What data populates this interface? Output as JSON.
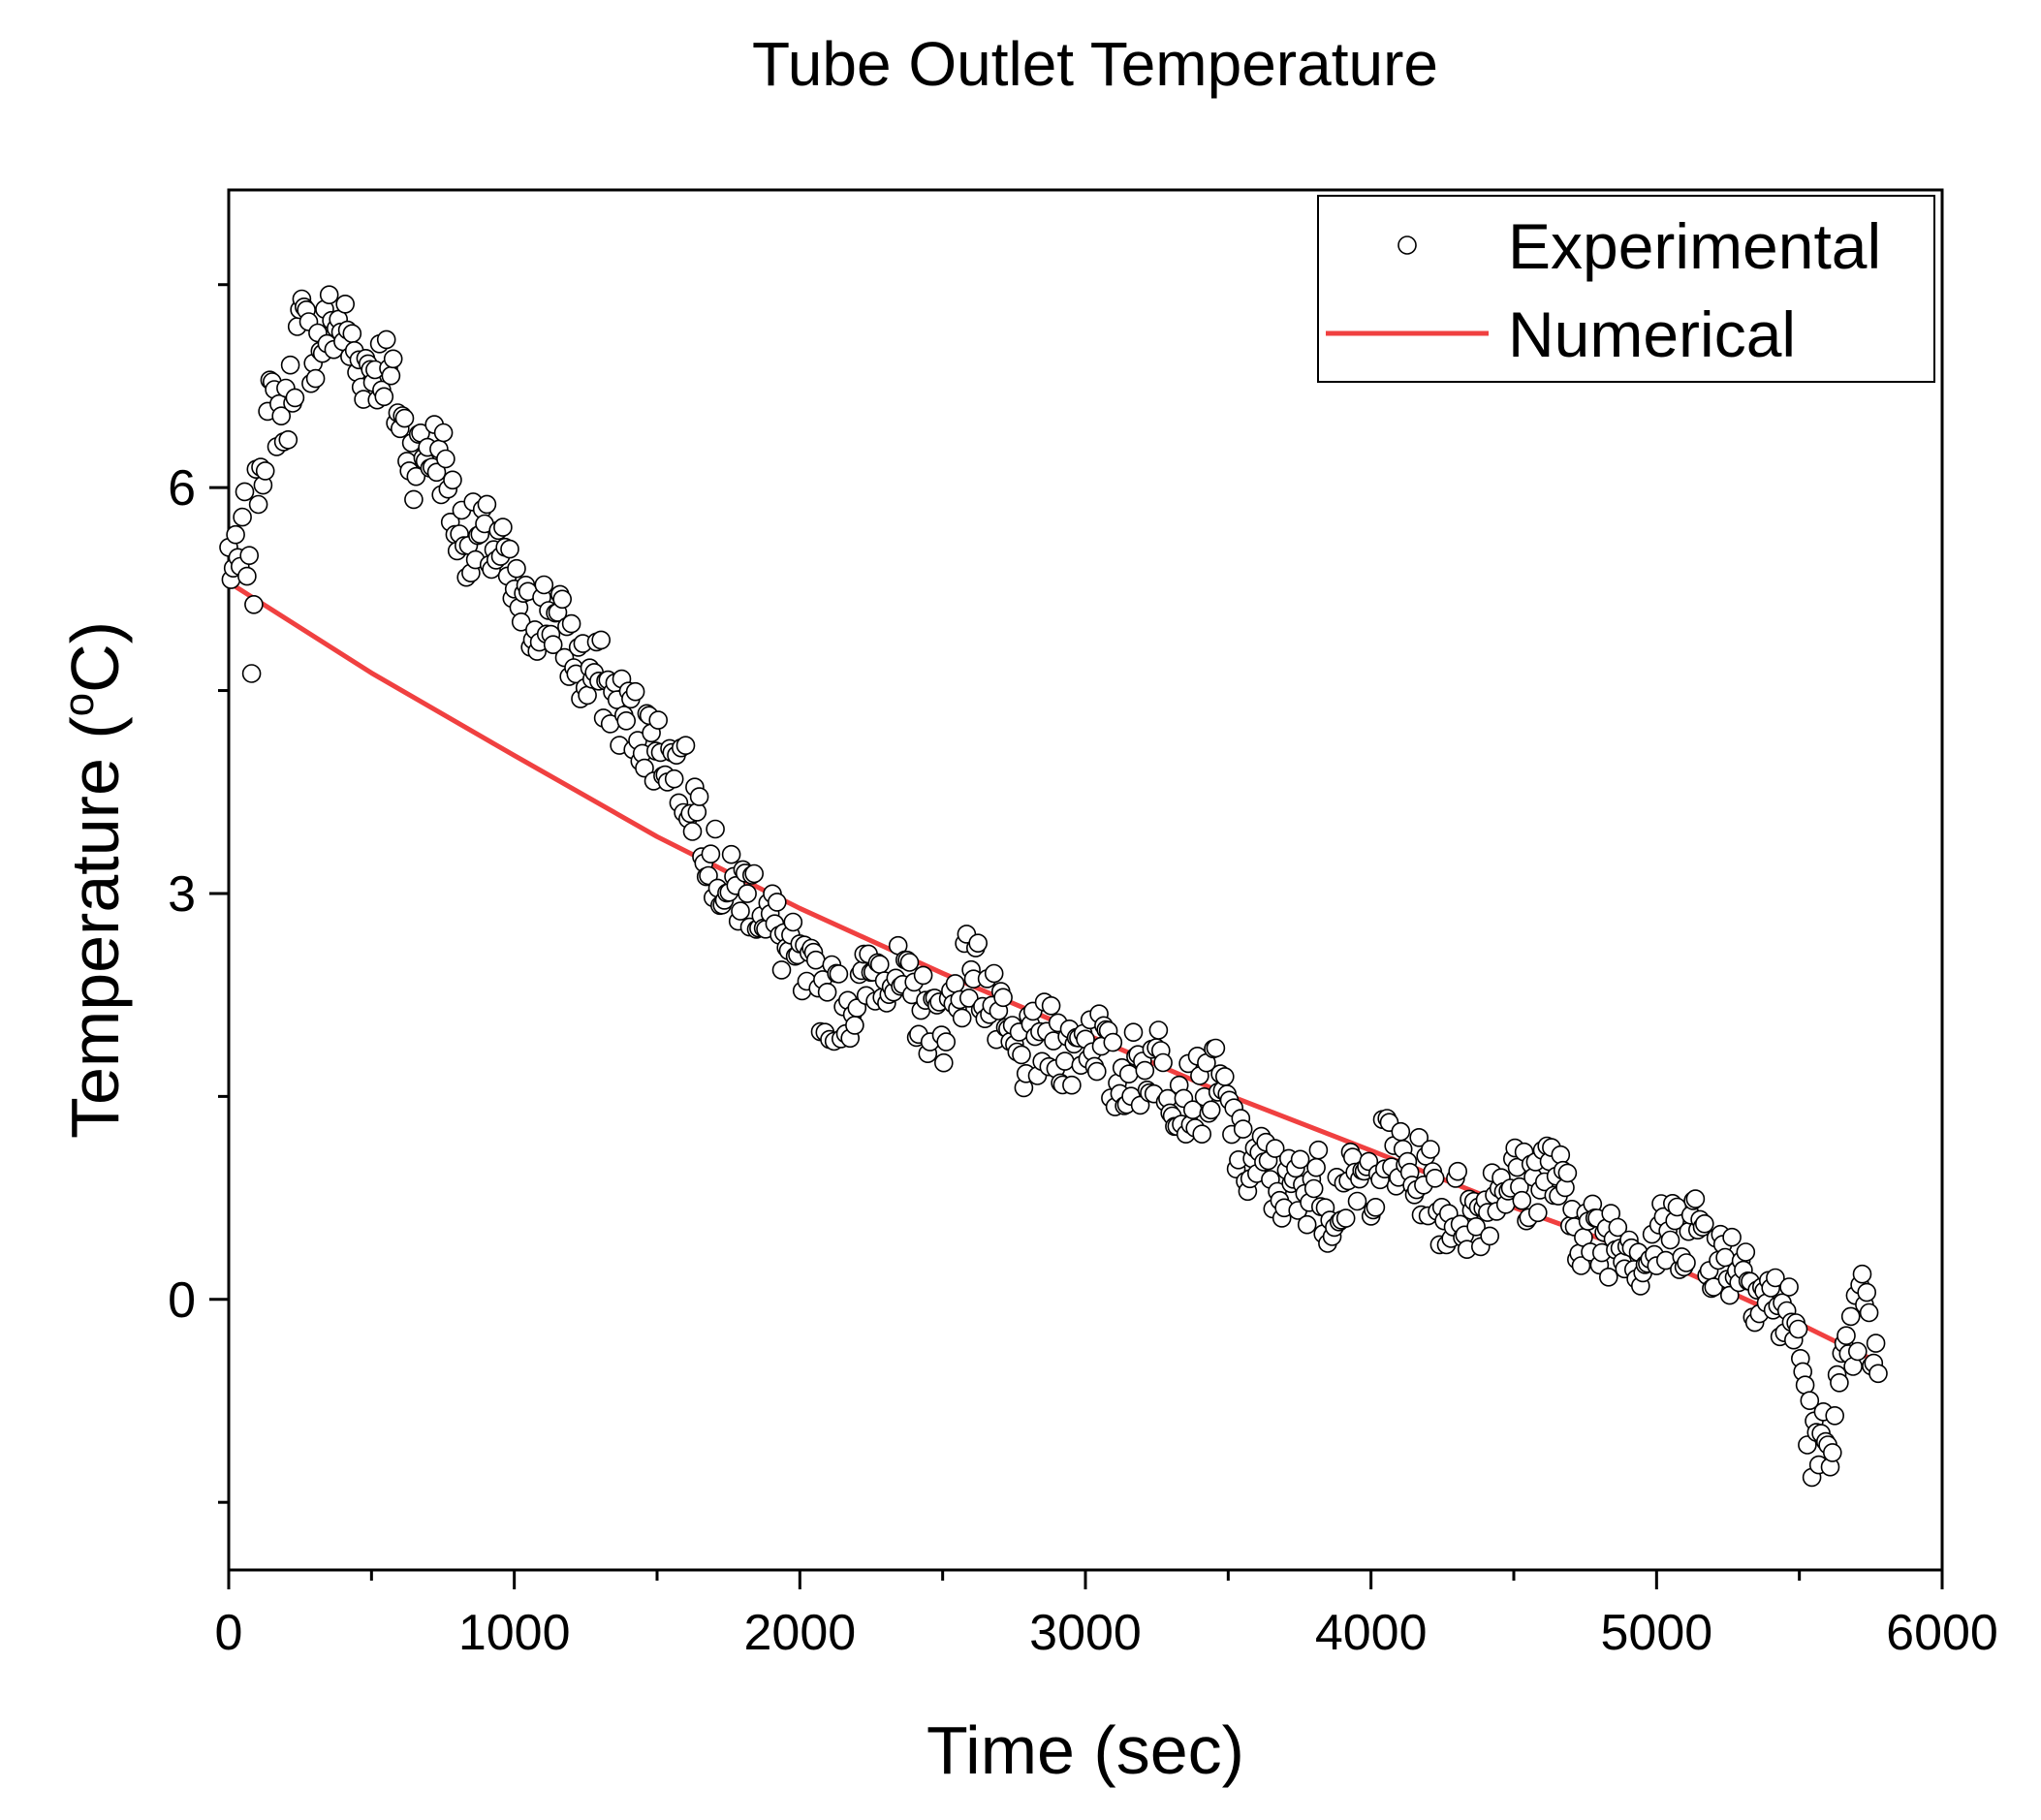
{
  "chart_data": {
    "type": "scatter",
    "title": "Tube Outlet Temperature",
    "xlabel": "Time (sec)",
    "ylabel_main": "Temperature (",
    "ylabel_sup": "o",
    "ylabel_tail": "C)",
    "xlim": [
      0,
      6000
    ],
    "ylim": [
      -2.0,
      8.2
    ],
    "grid": false,
    "legend_position": "top-right",
    "x_major_ticks": [
      0,
      1000,
      2000,
      3000,
      4000,
      5000,
      6000
    ],
    "x_tick_labels": [
      "0",
      "1000",
      "2000",
      "3000",
      "4000",
      "5000",
      "6000"
    ],
    "x_minor_ticks": [
      500,
      1500,
      2500,
      3500,
      4500,
      5500
    ],
    "y_major_ticks": [
      0,
      3,
      6
    ],
    "y_tick_labels": [
      "0",
      "3",
      "6"
    ],
    "y_minor_ticks": [
      -1.5,
      1.5,
      4.5,
      7.5
    ],
    "colors": {
      "numerical": "#f04040",
      "experimental_edge": "#000000",
      "experimental_fill": "#ffffff"
    },
    "series": [
      {
        "name": "Experimental",
        "style": "open-circle",
        "anchors": [
          [
            0,
            5.5
          ],
          [
            20,
            5.35
          ],
          [
            40,
            5.4
          ],
          [
            60,
            5.8
          ],
          [
            80,
            4.8
          ],
          [
            100,
            6.1
          ],
          [
            150,
            6.6
          ],
          [
            200,
            6.5
          ],
          [
            250,
            7.2
          ],
          [
            300,
            7.0
          ],
          [
            350,
            7.2
          ],
          [
            400,
            7.2
          ],
          [
            450,
            6.9
          ],
          [
            500,
            6.9
          ],
          [
            550,
            6.9
          ],
          [
            600,
            6.5
          ],
          [
            650,
            6.2
          ],
          [
            700,
            6.3
          ],
          [
            750,
            6.2
          ],
          [
            800,
            5.7
          ],
          [
            850,
            5.6
          ],
          [
            900,
            5.6
          ],
          [
            950,
            5.5
          ],
          [
            1000,
            5.2
          ],
          [
            1050,
            5.0
          ],
          [
            1100,
            5.1
          ],
          [
            1150,
            5.0
          ],
          [
            1200,
            4.8
          ],
          [
            1250,
            4.6
          ],
          [
            1300,
            4.6
          ],
          [
            1350,
            4.4
          ],
          [
            1400,
            4.3
          ],
          [
            1450,
            4.2
          ],
          [
            1500,
            4.1
          ],
          [
            1550,
            4.0
          ],
          [
            1600,
            3.8
          ],
          [
            1650,
            3.6
          ],
          [
            1700,
            3.2
          ],
          [
            1750,
            3.0
          ],
          [
            1800,
            3.0
          ],
          [
            1850,
            3.0
          ],
          [
            1900,
            2.8
          ],
          [
            1950,
            2.6
          ],
          [
            2000,
            2.4
          ],
          [
            2050,
            2.3
          ],
          [
            2100,
            2.2
          ],
          [
            2150,
            2.2
          ],
          [
            2200,
            2.2
          ],
          [
            2250,
            2.4
          ],
          [
            2300,
            2.5
          ],
          [
            2350,
            2.3
          ],
          [
            2400,
            2.2
          ],
          [
            2450,
            2.1
          ],
          [
            2500,
            2.0
          ],
          [
            2550,
            2.3
          ],
          [
            2600,
            2.5
          ],
          [
            2650,
            2.3
          ],
          [
            2700,
            2.0
          ],
          [
            2750,
            1.8
          ],
          [
            2800,
            1.8
          ],
          [
            2850,
            1.9
          ],
          [
            2900,
            1.9
          ],
          [
            2950,
            1.8
          ],
          [
            3000,
            2.0
          ],
          [
            3050,
            1.9
          ],
          [
            3100,
            1.6
          ],
          [
            3150,
            1.7
          ],
          [
            3200,
            1.7
          ],
          [
            3250,
            1.8
          ],
          [
            3300,
            1.6
          ],
          [
            3350,
            1.5
          ],
          [
            3400,
            1.5
          ],
          [
            3450,
            1.6
          ],
          [
            3500,
            1.4
          ],
          [
            3550,
            1.0
          ],
          [
            3600,
            1.0
          ],
          [
            3650,
            0.9
          ],
          [
            3700,
            0.8
          ],
          [
            3750,
            0.8
          ],
          [
            3800,
            0.9
          ],
          [
            3850,
            0.7
          ],
          [
            3900,
            0.8
          ],
          [
            3950,
            0.8
          ],
          [
            4000,
            0.9
          ],
          [
            4050,
            1.1
          ],
          [
            4100,
            1.0
          ],
          [
            4150,
            0.9
          ],
          [
            4200,
            0.9
          ],
          [
            4250,
            0.6
          ],
          [
            4300,
            0.7
          ],
          [
            4350,
            0.6
          ],
          [
            4400,
            0.7
          ],
          [
            4450,
            0.9
          ],
          [
            4500,
            0.9
          ],
          [
            4550,
            0.8
          ],
          [
            4600,
            1.0
          ],
          [
            4650,
            0.9
          ],
          [
            4700,
            0.6
          ],
          [
            4750,
            0.5
          ],
          [
            4800,
            0.4
          ],
          [
            4850,
            0.5
          ],
          [
            4900,
            0.5
          ],
          [
            4950,
            0.3
          ],
          [
            5000,
            0.4
          ],
          [
            5050,
            0.5
          ],
          [
            5100,
            0.5
          ],
          [
            5150,
            0.6
          ],
          [
            5200,
            0.3
          ],
          [
            5250,
            0.3
          ],
          [
            5300,
            0.3
          ],
          [
            5350,
            0.1
          ],
          [
            5400,
            0.0
          ],
          [
            5450,
            -0.1
          ],
          [
            5500,
            -0.3
          ],
          [
            5530,
            -0.9
          ],
          [
            5560,
            -1.2
          ],
          [
            5600,
            -1.0
          ],
          [
            5640,
            -0.7
          ],
          [
            5680,
            -0.4
          ],
          [
            5720,
            0.0
          ],
          [
            5760,
            -0.4
          ],
          [
            5780,
            -0.7
          ]
        ],
        "sample_step_sec": 8,
        "noise_amplitude": 0.3,
        "noise_seed": 7
      },
      {
        "name": "Numerical",
        "style": "line",
        "x": [
          0,
          500,
          1000,
          1500,
          2000,
          2500,
          3000,
          3500,
          4000,
          4500,
          5000,
          5500,
          5780
        ],
        "y": [
          5.3,
          4.63,
          4.02,
          3.42,
          2.89,
          2.41,
          1.96,
          1.51,
          1.1,
          0.68,
          0.3,
          -0.18,
          -0.47
        ]
      }
    ]
  }
}
